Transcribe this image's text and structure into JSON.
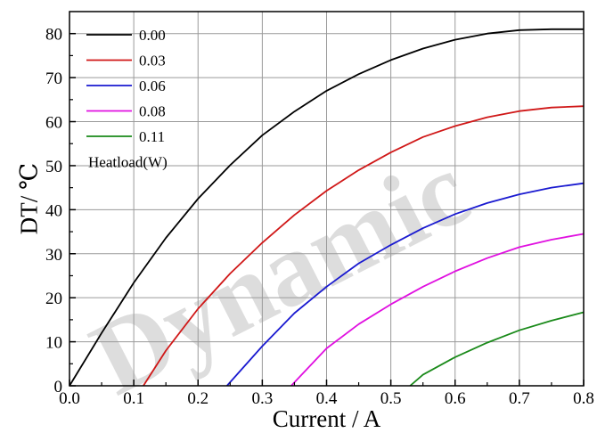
{
  "watermark": "Dynamic",
  "chart_data": {
    "type": "line",
    "title": "",
    "xlabel": "Current / A",
    "ylabel": "DT/ ℃",
    "xlim": [
      0.0,
      0.8
    ],
    "ylim": [
      0,
      85
    ],
    "x_ticks": [
      "0.0",
      "0.1",
      "0.2",
      "0.3",
      "0.4",
      "0.5",
      "0.6",
      "0.7",
      "0.8"
    ],
    "y_ticks": [
      "0",
      "10",
      "20",
      "30",
      "40",
      "50",
      "60",
      "70",
      "80"
    ],
    "grid": true,
    "legend_position": "top-left",
    "legend_title": "Heatload(W)",
    "series": [
      {
        "name": "0.00",
        "color": "#000000",
        "x": [
          0.0,
          0.05,
          0.1,
          0.15,
          0.2,
          0.25,
          0.3,
          0.35,
          0.4,
          0.45,
          0.5,
          0.55,
          0.6,
          0.65,
          0.7,
          0.75,
          0.8
        ],
        "y": [
          0.0,
          12.0,
          23.4,
          33.6,
          42.5,
          50.1,
          56.9,
          62.3,
          67.0,
          70.8,
          74.0,
          76.6,
          78.6,
          80.0,
          80.8,
          81.0,
          81.0
        ]
      },
      {
        "name": "0.03",
        "color": "#d01818",
        "x": [
          0.115,
          0.15,
          0.2,
          0.25,
          0.3,
          0.35,
          0.4,
          0.45,
          0.5,
          0.55,
          0.6,
          0.65,
          0.7,
          0.75,
          0.8
        ],
        "y": [
          0.0,
          8.0,
          17.5,
          25.5,
          32.5,
          38.8,
          44.3,
          49.0,
          53.0,
          56.5,
          59.0,
          61.0,
          62.4,
          63.2,
          63.5
        ]
      },
      {
        "name": "0.06",
        "color": "#1a1ad0",
        "x": [
          0.245,
          0.3,
          0.35,
          0.4,
          0.45,
          0.5,
          0.55,
          0.6,
          0.65,
          0.7,
          0.75,
          0.8
        ],
        "y": [
          0.0,
          9.0,
          16.5,
          22.5,
          27.8,
          32.0,
          35.8,
          39.0,
          41.5,
          43.5,
          45.0,
          46.0
        ]
      },
      {
        "name": "0.08",
        "color": "#e010e0",
        "x": [
          0.345,
          0.4,
          0.45,
          0.5,
          0.55,
          0.6,
          0.65,
          0.7,
          0.75,
          0.8
        ],
        "y": [
          0.0,
          8.5,
          14.0,
          18.5,
          22.5,
          26.0,
          29.0,
          31.5,
          33.2,
          34.5
        ]
      },
      {
        "name": "0.11",
        "color": "#1a8a1a",
        "x": [
          0.53,
          0.55,
          0.6,
          0.65,
          0.7,
          0.75,
          0.8
        ],
        "y": [
          0.0,
          2.5,
          6.5,
          9.8,
          12.6,
          14.8,
          16.7
        ]
      }
    ]
  }
}
